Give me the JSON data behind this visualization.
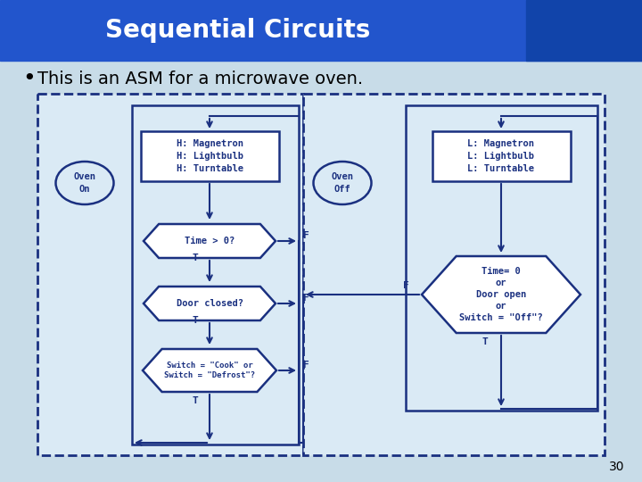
{
  "title": "Sequential Circuits",
  "title_bg": "#2255cc",
  "title_text_color": "#ffffff",
  "slide_bg": "#c8dce8",
  "diag_bg": "#daeaf5",
  "db": "#1a3080",
  "bullet_text": "This is an ASM for a microwave oven.",
  "page_number": "30"
}
